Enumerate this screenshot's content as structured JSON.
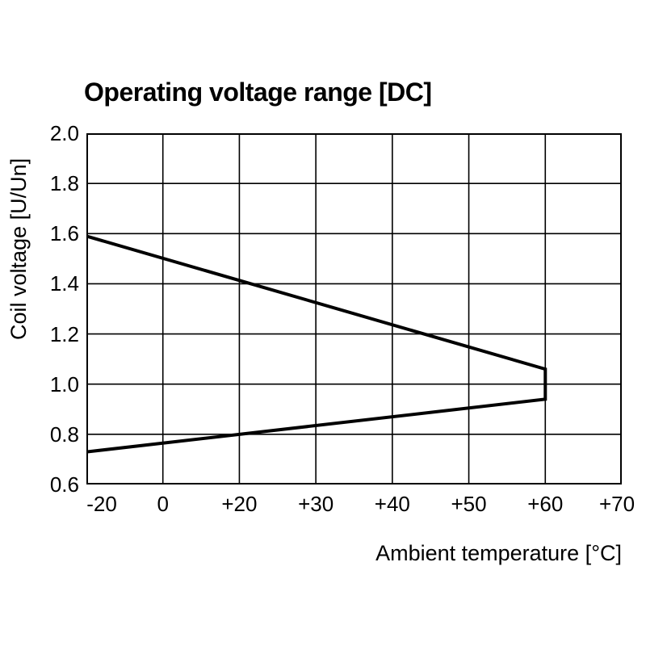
{
  "chart_data": {
    "type": "line",
    "title": "Operating voltage range [DC]",
    "xlabel": "Ambient temperature [°C]",
    "ylabel": "Coil voltage [U/Un]",
    "x_scale": "uniform-tick-spacing",
    "x_tick_labels": [
      "-20",
      "0",
      "+20",
      "+30",
      "+40",
      "+50",
      "+60",
      "+70"
    ],
    "x_tick_values": [
      -20,
      0,
      20,
      30,
      40,
      50,
      60,
      70
    ],
    "y_ticks": [
      0.6,
      0.8,
      1.0,
      1.2,
      1.4,
      1.6,
      1.8,
      2.0
    ],
    "y_tick_labels": [
      "0.6",
      "0.8",
      "1.0",
      "1.2",
      "1.4",
      "1.6",
      "1.8",
      "2.0"
    ],
    "ylim": [
      0.6,
      2.0
    ],
    "grid": true,
    "series": [
      {
        "name": "operating-voltage-range-boundary",
        "points": [
          {
            "t": -20,
            "v": 1.59
          },
          {
            "t": 60,
            "v": 1.06
          },
          {
            "t": 60,
            "v": 0.94
          },
          {
            "t": -20,
            "v": 0.73
          }
        ]
      }
    ],
    "line_color": "#000000",
    "grid_color": "#000000",
    "line_width": 4
  }
}
